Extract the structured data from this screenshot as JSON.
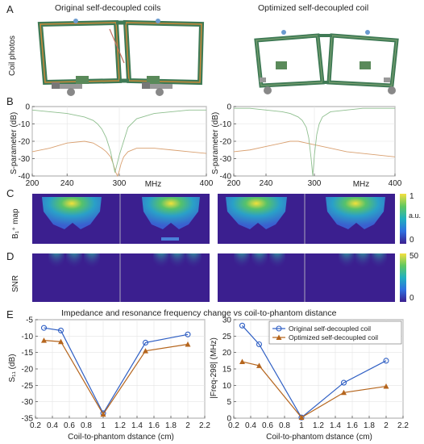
{
  "panels": {
    "a": "A",
    "b": "B",
    "c": "C",
    "d": "D",
    "e": "E"
  },
  "panel_a": {
    "title_left": "Original self-decoupled coils",
    "title_right": "Optimized self-decoupled coil",
    "ylabel": "Coil photos"
  },
  "panel_b": {
    "ylabel": "S-parameter (dB)",
    "xunit": "MHz"
  },
  "panel_c": {
    "ylabel": "B₁⁺ map",
    "colorbar_max": "1",
    "colorbar_min": "0",
    "colorbar_unit": "a.u."
  },
  "panel_d": {
    "ylabel": "SNR",
    "colorbar_max": "50",
    "colorbar_min": "0"
  },
  "panel_e": {
    "title": "Impedance and resonance frequency change vs coil-to-phantom distance"
  },
  "colors": {
    "original": "#2f5fc4",
    "optimized": "#b5651d",
    "s11_trace": "#d9a070",
    "s21_trace": "#8fbf8f",
    "map_bg": "#3b1f8f"
  },
  "chart_data": [
    {
      "type": "line",
      "id": "b-left",
      "xlabel": "MHz",
      "ylabel": "S-parameter (dB)",
      "xlim": [
        200,
        400
      ],
      "ylim": [
        -40,
        0
      ],
      "xticks": [
        "200",
        "240",
        "300",
        "400"
      ],
      "xtick_values": [
        200,
        240,
        300,
        400
      ],
      "yticks": [
        "0",
        "-10",
        "-20",
        "-30",
        "-40"
      ],
      "ytick_values": [
        0,
        -10,
        -20,
        -30,
        -40
      ],
      "series": [
        {
          "x": [
            200,
            220,
            240,
            260,
            270,
            280,
            285,
            290,
            293,
            296,
            298,
            300,
            302,
            305,
            310,
            320,
            340,
            360,
            380,
            400
          ],
          "y": [
            -26,
            -24,
            -21,
            -20,
            -21,
            -24,
            -26,
            -29,
            -33,
            -38,
            -40,
            -37,
            -33,
            -29,
            -26,
            -24,
            -24,
            -25,
            -26,
            -27
          ]
        },
        {
          "x": [
            200,
            220,
            240,
            260,
            270,
            275,
            280,
            285,
            290,
            295,
            300,
            310,
            320,
            340,
            360,
            380,
            400
          ],
          "y": [
            -2,
            -3,
            -4,
            -6,
            -8,
            -10,
            -13,
            -18,
            -26,
            -38,
            -28,
            -12,
            -7,
            -4,
            -3,
            -2,
            -2
          ]
        }
      ]
    },
    {
      "type": "line",
      "id": "b-right",
      "xlabel": "MHz",
      "ylabel": "S-parameter (dB)",
      "xlim": [
        200,
        400
      ],
      "ylim": [
        -40,
        0
      ],
      "xticks": [
        "200",
        "240",
        "300",
        "400"
      ],
      "xtick_values": [
        200,
        240,
        300,
        400
      ],
      "yticks": [
        "0",
        "-10",
        "-20",
        "-30",
        "-40"
      ],
      "ytick_values": [
        0,
        -10,
        -20,
        -30,
        -40
      ],
      "series": [
        {
          "x": [
            200,
            220,
            240,
            260,
            270,
            280,
            290,
            300,
            320,
            340,
            360,
            380,
            400
          ],
          "y": [
            -26,
            -25,
            -23,
            -21,
            -20,
            -20,
            -21,
            -22,
            -24,
            -26,
            -27,
            -28,
            -29
          ]
        },
        {
          "x": [
            200,
            220,
            240,
            260,
            270,
            280,
            285,
            290,
            293,
            296,
            298,
            300,
            303,
            306,
            310,
            320,
            340,
            360,
            380,
            400
          ],
          "y": [
            -1,
            -1,
            -2,
            -3,
            -4,
            -6,
            -8,
            -12,
            -18,
            -30,
            -40,
            -28,
            -16,
            -10,
            -6,
            -3,
            -2,
            -1,
            -1,
            -1
          ]
        }
      ]
    },
    {
      "type": "line",
      "id": "e-left",
      "xlabel": "Coil-to-phantom dstance (cm)",
      "ylabel": "S₁₁ (dB)",
      "xlim": [
        0.2,
        2.2
      ],
      "ylim": [
        -35,
        -5
      ],
      "xticks": [
        "0.2",
        "0.4",
        "0.6",
        "0.8",
        "1",
        "1.2",
        "1.4",
        "1.6",
        "1.8",
        "2",
        "2.2"
      ],
      "xtick_values": [
        0.2,
        0.4,
        0.6,
        0.8,
        1,
        1.2,
        1.4,
        1.6,
        1.8,
        2,
        2.2
      ],
      "yticks": [
        "-5",
        "-10",
        "-15",
        "-20",
        "-25",
        "-30",
        "-35"
      ],
      "ytick_values": [
        -5,
        -10,
        -15,
        -20,
        -25,
        -30,
        -35
      ],
      "series": [
        {
          "x": [
            0.3,
            0.5,
            1,
            1.5,
            2
          ],
          "y": [
            -7.5,
            -8.3,
            -33.5,
            -12,
            -9.5
          ]
        },
        {
          "x": [
            0.3,
            0.5,
            1,
            1.5,
            2
          ],
          "y": [
            -11.3,
            -11.7,
            -33.8,
            -14.5,
            -12.5
          ]
        }
      ]
    },
    {
      "type": "line",
      "id": "e-right",
      "xlabel": "Coil-to-phantom dstance (cm)",
      "ylabel": "|Freq-298| (MHz)",
      "xlim": [
        0.2,
        2.2
      ],
      "ylim": [
        0,
        30
      ],
      "xticks": [
        "0.2",
        "0.4",
        "0.6",
        "0.8",
        "1",
        "1.2",
        "1.4",
        "1.6",
        "1.8",
        "2",
        "2.2"
      ],
      "xtick_values": [
        0.2,
        0.4,
        0.6,
        0.8,
        1,
        1.2,
        1.4,
        1.6,
        1.8,
        2,
        2.2
      ],
      "yticks": [
        "0",
        "5",
        "10",
        "15",
        "20",
        "25",
        "30"
      ],
      "ytick_values": [
        0,
        5,
        10,
        15,
        20,
        25,
        30
      ],
      "legend_position": "top-right",
      "series": [
        {
          "name": "Original self-decoupled coil",
          "x": [
            0.3,
            0.5,
            1,
            1.5,
            2
          ],
          "y": [
            28.2,
            22.5,
            0.2,
            10.8,
            17.5
          ]
        },
        {
          "name": "Optimized self-decoupled coil",
          "x": [
            0.3,
            0.5,
            1,
            1.5,
            2
          ],
          "y": [
            17.2,
            16,
            0.2,
            7.8,
            9.7
          ]
        }
      ]
    }
  ]
}
